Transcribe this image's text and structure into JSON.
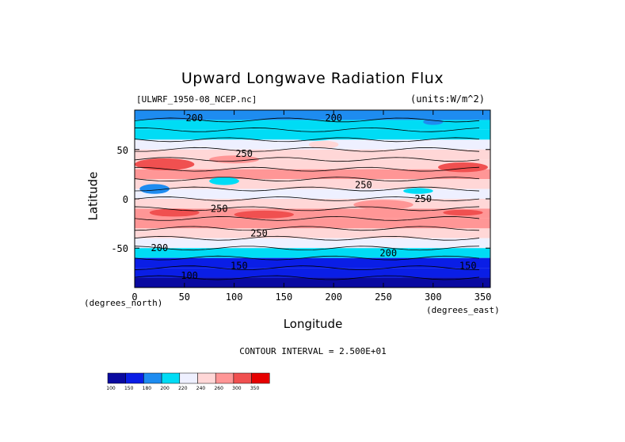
{
  "title": "Upward Longwave Radiation Flux",
  "source_file": "[ULWRF_1950-08_NCEP.nc]",
  "units_label": "(units:W/m^2)",
  "x_axis": {
    "label": "Longitude",
    "corner_label": "(degrees_east)",
    "ticks": [
      "0",
      "50",
      "100",
      "150",
      "200",
      "250",
      "300",
      "350"
    ]
  },
  "y_axis": {
    "label": "Latitude",
    "corner_label": "(degrees_north)",
    "ticks": [
      "50",
      "0",
      "-50"
    ]
  },
  "contour_note": "CONTOUR INTERVAL = 2.500E+01",
  "colorbar": {
    "labels": [
      "100",
      "150",
      "180",
      "200",
      "220",
      "240",
      "260",
      "300",
      "350"
    ],
    "colors": [
      "#0a0aa0",
      "#0a1ee6",
      "#1e8cf0",
      "#00dcf5",
      "#eef0ff",
      "#ffd7d7",
      "#ff9696",
      "#f05050",
      "#e60000"
    ]
  },
  "chart_data": {
    "type": "heatmap",
    "title": "Upward Longwave Radiation Flux",
    "xlabel": "Longitude",
    "ylabel": "Latitude",
    "xlim": [
      0,
      357.5
    ],
    "ylim": [
      -90,
      90
    ],
    "x_ticks": [
      0,
      50,
      100,
      150,
      200,
      250,
      300,
      350
    ],
    "y_ticks": [
      50,
      0,
      -50
    ],
    "contour_interval": 25,
    "contour_labels": [
      {
        "text": "200",
        "lon": 60,
        "lat": 82
      },
      {
        "text": "200",
        "lon": 200,
        "lat": 82
      },
      {
        "text": "250",
        "lon": 110,
        "lat": 46
      },
      {
        "text": "250",
        "lon": 230,
        "lat": 14
      },
      {
        "text": "250",
        "lon": 290,
        "lat": 0
      },
      {
        "text": "250",
        "lon": 85,
        "lat": -10
      },
      {
        "text": "250",
        "lon": 125,
        "lat": -35
      },
      {
        "text": "200",
        "lon": 25,
        "lat": -50
      },
      {
        "text": "200",
        "lon": 255,
        "lat": -55
      },
      {
        "text": "150",
        "lon": 105,
        "lat": -68
      },
      {
        "text": "150",
        "lon": 335,
        "lat": -68
      },
      {
        "text": "100",
        "lon": 55,
        "lat": -78
      }
    ],
    "bands": [
      {
        "lat": 90,
        "value": 195
      },
      {
        "lat": 80,
        "value": 210
      },
      {
        "lat": 70,
        "value": 215
      },
      {
        "lat": 60,
        "value": 225
      },
      {
        "lat": 50,
        "value": 240
      },
      {
        "lat": 40,
        "value": 255
      },
      {
        "lat": 30,
        "value": 260
      },
      {
        "lat": 20,
        "value": 245
      },
      {
        "lat": 10,
        "value": 225
      },
      {
        "lat": 0,
        "value": 240
      },
      {
        "lat": -10,
        "value": 265
      },
      {
        "lat": -20,
        "value": 275
      },
      {
        "lat": -30,
        "value": 255
      },
      {
        "lat": -40,
        "value": 225
      },
      {
        "lat": -50,
        "value": 205
      },
      {
        "lat": -60,
        "value": 175
      },
      {
        "lat": -70,
        "value": 150
      },
      {
        "lat": -80,
        "value": 130
      },
      {
        "lat": -90,
        "value": 120
      }
    ],
    "anomalies": [
      {
        "lon": 30,
        "lat": 35,
        "w": 60,
        "h": 12,
        "value": 300
      },
      {
        "lon": 100,
        "lat": 40,
        "w": 50,
        "h": 8,
        "value": 280
      },
      {
        "lon": 330,
        "lat": 32,
        "w": 50,
        "h": 10,
        "value": 300
      },
      {
        "lon": 240,
        "lat": 25,
        "w": 70,
        "h": 10,
        "value": 280
      },
      {
        "lon": 20,
        "lat": 10,
        "w": 30,
        "h": 10,
        "value": 190
      },
      {
        "lon": 90,
        "lat": 18,
        "w": 30,
        "h": 8,
        "value": 200
      },
      {
        "lon": 285,
        "lat": 8,
        "w": 30,
        "h": 6,
        "value": 200
      },
      {
        "lon": 40,
        "lat": -14,
        "w": 50,
        "h": 8,
        "value": 300
      },
      {
        "lon": 130,
        "lat": -16,
        "w": 60,
        "h": 8,
        "value": 310
      },
      {
        "lon": 250,
        "lat": -6,
        "w": 60,
        "h": 10,
        "value": 290
      },
      {
        "lon": 330,
        "lat": -14,
        "w": 40,
        "h": 6,
        "value": 310
      },
      {
        "lon": 190,
        "lat": 55,
        "w": 30,
        "h": 8,
        "value": 250
      },
      {
        "lon": 180,
        "lat": 62,
        "w": 40,
        "h": 6,
        "value": 200
      },
      {
        "lon": 300,
        "lat": 78,
        "w": 20,
        "h": 6,
        "value": 180
      }
    ]
  }
}
